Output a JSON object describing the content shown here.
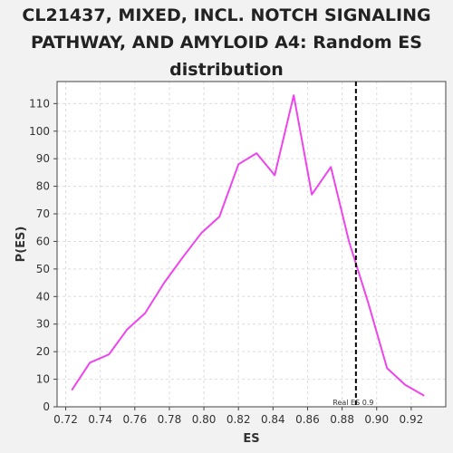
{
  "chart_data": {
    "type": "line",
    "title": "CL21437, MIXED, INCL. NOTCH SIGNALING\nPATHWAY, AND AMYLOID A4: Random ES\ndistribution",
    "xlabel": "ES",
    "ylabel": "P(ES)",
    "xlim": [
      0.715,
      0.94
    ],
    "ylim": [
      0,
      118
    ],
    "xticks": [
      "0.72",
      "0.74",
      "0.76",
      "0.78",
      "0.80",
      "0.82",
      "0.84",
      "0.86",
      "0.88",
      "0.90",
      "0.92"
    ],
    "yticks": [
      "0",
      "10",
      "20",
      "30",
      "40",
      "50",
      "60",
      "70",
      "80",
      "90",
      "100",
      "110"
    ],
    "grid": true,
    "series": [
      {
        "color": "#ee44ee",
        "x": [
          0.7235,
          0.734,
          0.745,
          0.7555,
          0.766,
          0.777,
          0.7875,
          0.7985,
          0.809,
          0.82,
          0.8305,
          0.841,
          0.852,
          0.8625,
          0.8735,
          0.884,
          0.895,
          0.906,
          0.9165,
          0.9275
        ],
        "y": [
          6,
          16,
          19,
          28,
          34,
          45,
          54,
          63,
          69,
          88,
          92,
          84,
          113,
          77,
          87,
          60,
          38,
          14,
          8,
          4
        ]
      }
    ],
    "annotations": [
      {
        "type": "vline",
        "x": 0.888,
        "style": "dashed",
        "color": "#000000",
        "label": "Real ES 0.9"
      }
    ]
  }
}
